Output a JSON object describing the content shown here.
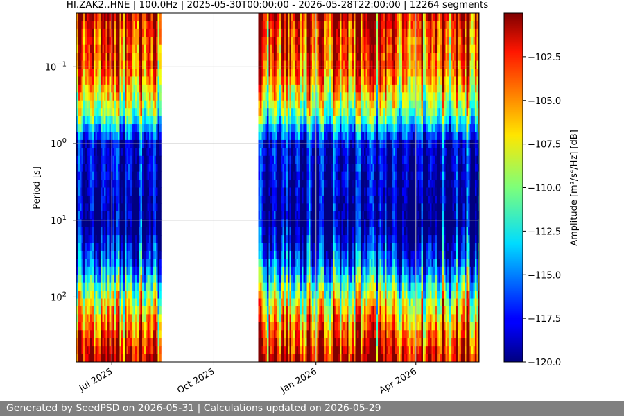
{
  "chart_data": {
    "type": "heatmap",
    "title": "HI.ZAK2..HNE | 100.0Hz | 2025-05-30T00:00:00 - 2026-05-28T22:00:00 | 12264 segments",
    "xlabel": "",
    "ylabel": "Period [s]",
    "y_scale": "log",
    "y_inverted": true,
    "ylim": [
      0.02,
      700
    ],
    "xlim": [
      "2025-05-30",
      "2026-05-28"
    ],
    "x_ticks": [
      {
        "date": "2025-07-01",
        "label": "Jul 2025"
      },
      {
        "date": "2025-10-01",
        "label": "Oct 2025"
      },
      {
        "date": "2026-01-01",
        "label": "Jan 2026"
      },
      {
        "date": "2026-04-01",
        "label": "Apr 2026"
      }
    ],
    "y_ticks": [
      {
        "value": 0.1,
        "label": "10^-1"
      },
      {
        "value": 1,
        "label": "10^0"
      },
      {
        "value": 10,
        "label": "10^1"
      },
      {
        "value": 100,
        "label": "10^2"
      }
    ],
    "data_gaps": [
      [
        "2025-08-14",
        "2025-11-10"
      ]
    ],
    "data_coverage": [
      [
        "2025-05-30",
        "2025-08-14"
      ],
      [
        "2025-11-10",
        "2026-05-28"
      ]
    ],
    "colorbar": {
      "label": "Amplitude [m²/s⁴/Hz] [dB]",
      "colormap": "jet",
      "range": [
        -120,
        -100
      ],
      "ticks": [
        -120.0,
        -117.5,
        -115.0,
        -112.5,
        -110.0,
        -107.5,
        -105.0,
        -102.5
      ],
      "tick_labels": [
        "−120.0",
        "−117.5",
        "−115.0",
        "−112.5",
        "−110.0",
        "−107.5",
        "−105.0",
        "−102.5"
      ]
    },
    "grid": true,
    "typical_profile_db": [
      {
        "period": 0.02,
        "db": -101
      },
      {
        "period": 0.03,
        "db": -103
      },
      {
        "period": 0.1,
        "db": -104
      },
      {
        "period": 0.4,
        "db": -110
      },
      {
        "period": 1,
        "db": -118
      },
      {
        "period": 4,
        "db": -119
      },
      {
        "period": 12,
        "db": -120
      },
      {
        "period": 35,
        "db": -116
      },
      {
        "period": 100,
        "db": -109
      },
      {
        "period": 300,
        "db": -104
      },
      {
        "period": 700,
        "db": -101
      }
    ]
  },
  "footer": {
    "text": "Generated by SeedPSD on 2026-05-31 | Calculations updated on 2026-05-29"
  },
  "colors": {
    "footer_bg": "#808080",
    "grid": "#b0b0b0"
  }
}
